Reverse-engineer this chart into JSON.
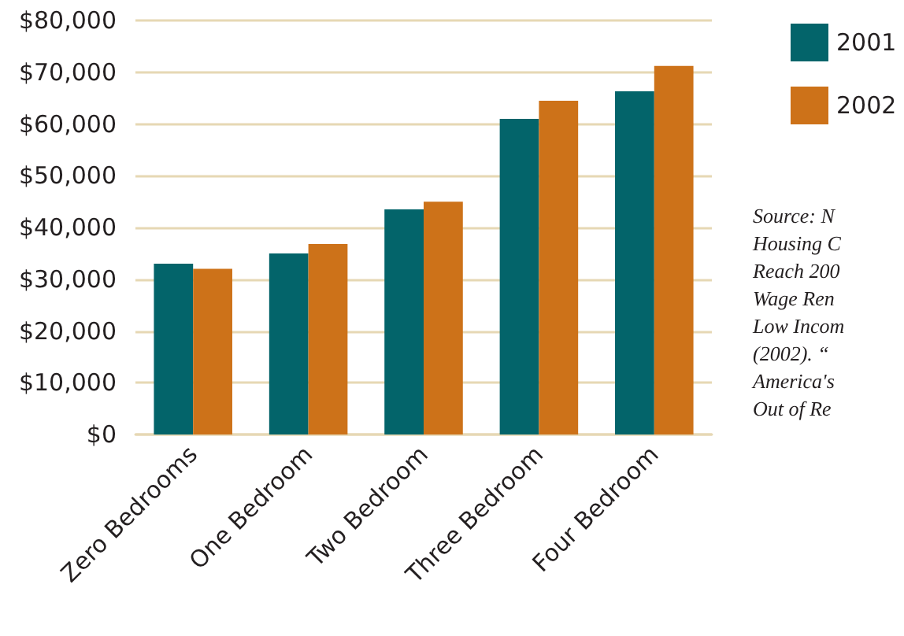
{
  "chart_data": {
    "type": "bar",
    "categories": [
      "Zero Bedrooms",
      "One Bedroom",
      "Two Bedroom",
      "Three Bedroom",
      "Four Bedroom"
    ],
    "series": [
      {
        "name": "2001",
        "color": "#03646a",
        "values": [
          33000,
          35000,
          43500,
          61000,
          66300
        ]
      },
      {
        "name": "2002",
        "color": "#cd7219",
        "values": [
          32000,
          36800,
          45000,
          64500,
          71200
        ]
      }
    ],
    "ylim": [
      0,
      80000
    ],
    "yticks": [
      {
        "value": 0,
        "label": "$0"
      },
      {
        "value": 10000,
        "label": "$10,000"
      },
      {
        "value": 20000,
        "label": "$20,000"
      },
      {
        "value": 30000,
        "label": "$30,000"
      },
      {
        "value": 40000,
        "label": "$40,000"
      },
      {
        "value": 50000,
        "label": "$50,000"
      },
      {
        "value": 60000,
        "label": "$60,000"
      },
      {
        "value": 70000,
        "label": "$70,000"
      },
      {
        "value": 80000,
        "label": "$80,000"
      }
    ],
    "grid": "y",
    "legend": "right",
    "annotations": [
      "Source: N\nHousing C\nReach 200\nWage Ren\nLow Incom\n(2002). “\nAmerica's\nOut of Re"
    ]
  }
}
